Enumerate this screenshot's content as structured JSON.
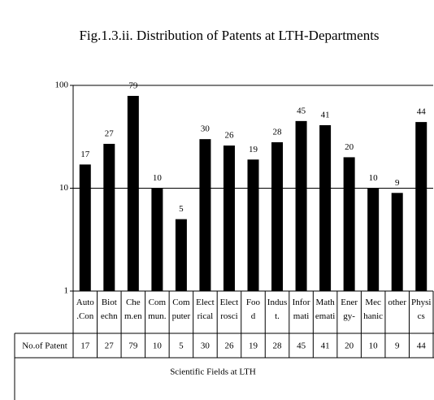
{
  "chart_data": {
    "type": "bar",
    "title": "Fig.1.3.ii. Distribution of Patents at LTH-Departments",
    "categories": [
      "Auto\n.Con",
      "Biot\nechn",
      "Che\nm.en",
      "Com\nmun.",
      "Com\nputer",
      "Elect\nrical",
      "Elect\nrosci",
      "Foo\nd",
      "Indus\nt.",
      "Infor\nmati",
      "Math\nemati",
      "Ener\ngy-",
      "Mec\nhanic",
      "other",
      "Physi\ncs"
    ],
    "values": [
      17,
      27,
      79,
      10,
      5,
      30,
      26,
      19,
      28,
      45,
      41,
      20,
      10,
      9,
      44
    ],
    "color": "#000000",
    "ylim": [
      1,
      100
    ],
    "yticks": [
      1,
      10,
      100
    ],
    "log_scale": true,
    "grid": true,
    "table_label": "No.of Patent",
    "x_label": "Scientific Fields at LTH"
  }
}
